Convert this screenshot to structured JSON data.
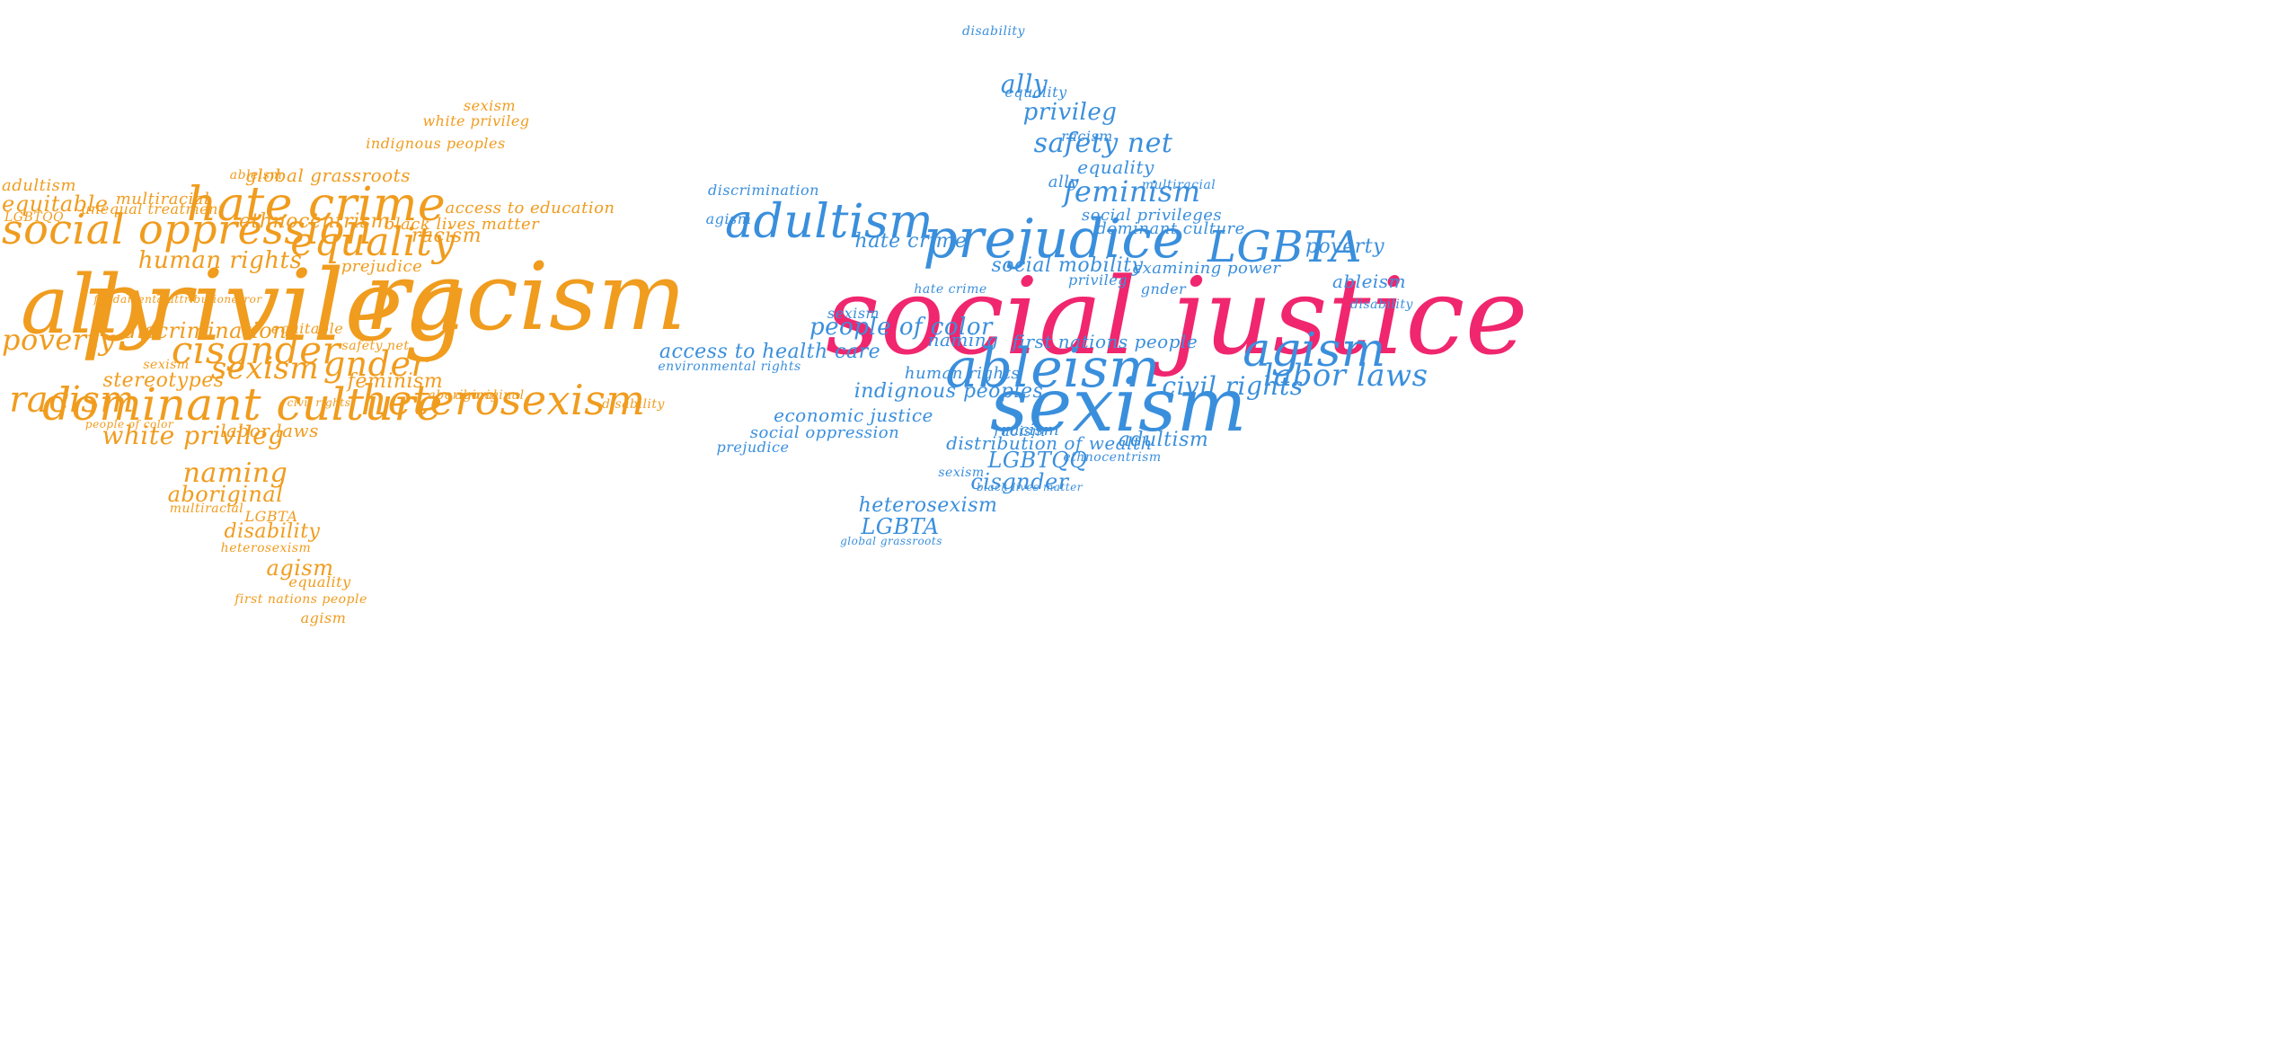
{
  "colors": {
    "left_cloud": "#f09c1e",
    "right_cloud": "#3a8fdc",
    "highlight": "#f0266e"
  },
  "clouds": [
    {
      "id": "left-hand-cloud",
      "color": "#f09c1e",
      "words": [
        "ally",
        "privileg",
        "racism",
        "social oppression",
        "hate crime",
        "equality",
        "dominant culture",
        "heterosexism",
        "cisgnder",
        "racism",
        "sexism",
        "gnder",
        "poverty",
        "naming",
        "white privileg",
        "human rights",
        "aboriginal",
        "agism",
        "disability",
        "ethnocentrism",
        "adultism",
        "equitable",
        "black lives matter",
        "global grassroots",
        "access to education",
        "discrimination",
        "stereotypes",
        "feminism",
        "labor laws",
        "multiracial",
        "first nations people",
        "LGBTQQ",
        "heterosexism",
        "equality",
        "white privileg",
        "indignous peoples",
        "sexism",
        "unequal treatment",
        "multiracial",
        "prejudice",
        "aboriginal",
        "disability",
        "ableism",
        "civil rights",
        "fundamentalattributionerror",
        "racism",
        "aboriginal",
        "sexism",
        "equitable",
        "safety net",
        "LGBTA",
        "agism",
        "people of color"
      ]
    },
    {
      "id": "right-hand-cloud",
      "color": "#3a8fdc",
      "words": [
        "social justice",
        "sexism",
        "ableism",
        "prejudice",
        "adultism",
        "agism",
        "LGBTA",
        "labor laws",
        "civil rights",
        "feminism",
        "safety net",
        "privileg",
        "ally",
        "people of color",
        "access to health care",
        "hate crime",
        "social mobility",
        "indignous peoples",
        "first nations people",
        "distribution of wealth",
        "LGBTQQ",
        "cisgnder",
        "economic justice",
        "social oppression",
        "heterosexism",
        "LGBTA",
        "adultism",
        "equality",
        "poverty",
        "examining power",
        "dominant culture",
        "naming",
        "racism",
        "human rights",
        "environmental rights",
        "discrimination",
        "social privileges",
        "agism",
        "racism",
        "ableism",
        "multiracial",
        "gnder",
        "sexism",
        "disability",
        "privileg",
        "ally",
        "equality",
        "racism",
        "disability",
        "prejudice",
        "sexism",
        "hate crime",
        "global grassroots",
        "ethnocentrism",
        "black lives matter"
      ]
    }
  ]
}
